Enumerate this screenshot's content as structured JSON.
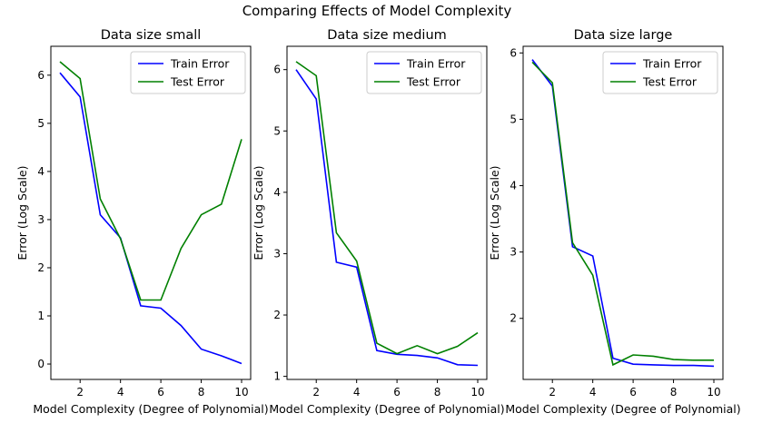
{
  "figure": {
    "suptitle": "Comparing Effects of Model Complexity"
  },
  "chart_data": [
    {
      "type": "line",
      "title": "Data size small",
      "xlabel": "Model Complexity (Degree of Polynomial)",
      "ylabel": "Error (Log Scale)",
      "xlim": [
        0.55,
        10.45
      ],
      "ylim": [
        -0.32,
        6.6
      ],
      "xticks": [
        2,
        4,
        6,
        8,
        10
      ],
      "yticks": [
        0,
        1,
        2,
        3,
        4,
        5,
        6
      ],
      "legend_position": "top-right",
      "x": [
        1,
        2,
        3,
        4,
        5,
        6,
        7,
        8,
        9,
        10
      ],
      "series": [
        {
          "name": "Train Error",
          "color": "#0000ff",
          "values": [
            6.05,
            5.55,
            3.1,
            2.62,
            1.21,
            1.16,
            0.8,
            0.31,
            0.17,
            0.01
          ]
        },
        {
          "name": "Test Error",
          "color": "#008000",
          "values": [
            6.28,
            5.93,
            3.43,
            2.6,
            1.33,
            1.33,
            2.4,
            3.1,
            3.32,
            4.67
          ]
        }
      ]
    },
    {
      "type": "line",
      "title": "Data size medium",
      "xlabel": "Model Complexity (Degree of Polynomial)",
      "ylabel": "Error (Log Scale)",
      "xlim": [
        0.55,
        10.45
      ],
      "ylim": [
        0.95,
        6.38
      ],
      "xticks": [
        2,
        4,
        6,
        8,
        10
      ],
      "yticks": [
        1,
        2,
        3,
        4,
        5,
        6
      ],
      "legend_position": "top-right",
      "x": [
        1,
        2,
        3,
        4,
        5,
        6,
        7,
        8,
        9,
        10
      ],
      "series": [
        {
          "name": "Train Error",
          "color": "#0000ff",
          "values": [
            6.0,
            5.52,
            2.86,
            2.78,
            1.42,
            1.36,
            1.34,
            1.3,
            1.19,
            1.18
          ]
        },
        {
          "name": "Test Error",
          "color": "#008000",
          "values": [
            6.13,
            5.9,
            3.34,
            2.88,
            1.54,
            1.37,
            1.5,
            1.37,
            1.49,
            1.71
          ]
        }
      ]
    },
    {
      "type": "line",
      "title": "Data size large",
      "xlabel": "Model Complexity (Degree of Polynomial)",
      "ylabel": "Error (Log Scale)",
      "xlim": [
        0.55,
        10.45
      ],
      "ylim": [
        1.08,
        6.1
      ],
      "xticks": [
        2,
        4,
        6,
        8,
        10
      ],
      "yticks": [
        2,
        3,
        4,
        5,
        6
      ],
      "legend_position": "top-right",
      "x": [
        1,
        2,
        3,
        4,
        5,
        6,
        7,
        8,
        9,
        10
      ],
      "series": [
        {
          "name": "Train Error",
          "color": "#0000ff",
          "values": [
            5.9,
            5.5,
            3.08,
            2.94,
            1.4,
            1.31,
            1.3,
            1.29,
            1.29,
            1.28
          ]
        },
        {
          "name": "Test Error",
          "color": "#008000",
          "values": [
            5.86,
            5.55,
            3.14,
            2.65,
            1.3,
            1.45,
            1.43,
            1.38,
            1.37,
            1.37
          ]
        }
      ]
    }
  ]
}
